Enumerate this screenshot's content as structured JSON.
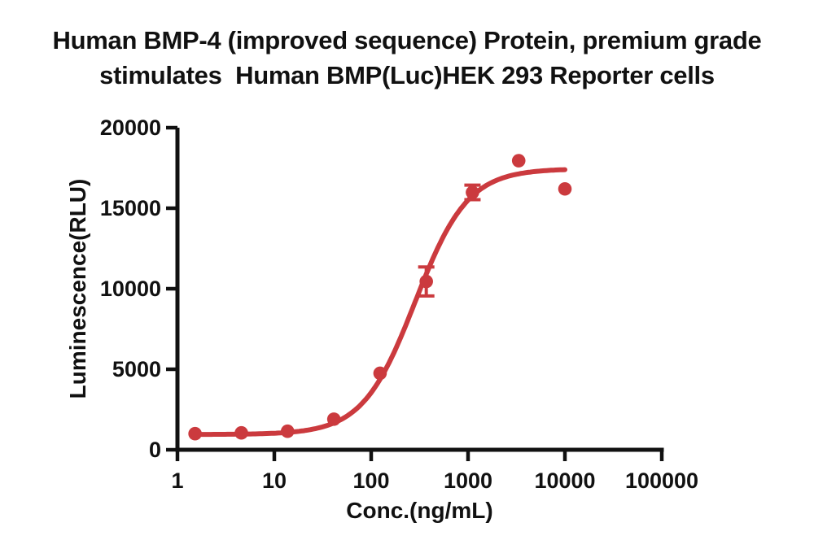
{
  "title": {
    "line1": "Human BMP-4 (improved sequence) Protein, premium grade",
    "line2": "stimulates  Human BMP(Luc)HEK 293 Reporter cells"
  },
  "chart_data": {
    "type": "scatter",
    "subtype": "dose-response-4PL-fit",
    "title": "Human BMP-4 (improved sequence) Protein, premium grade stimulates  Human BMP(Luc)HEK 293 Reporter cells",
    "xlabel": "Conc.(ng/mL)",
    "ylabel": "Luminescence(RLU)",
    "x_scale": "log10",
    "xlim": [
      1,
      100000
    ],
    "ylim": [
      0,
      20000
    ],
    "x_ticks": [
      1,
      10,
      100,
      1000,
      10000,
      100000
    ],
    "y_ticks": [
      0,
      5000,
      10000,
      15000,
      20000
    ],
    "grid": false,
    "legend_position": "none",
    "points": [
      {
        "conc": 1.52,
        "rlu": 1000,
        "err": 0
      },
      {
        "conc": 4.57,
        "rlu": 1050,
        "err": 0
      },
      {
        "conc": 13.7,
        "rlu": 1150,
        "err": 0
      },
      {
        "conc": 41.2,
        "rlu": 1900,
        "err": 0
      },
      {
        "conc": 123.5,
        "rlu": 4750,
        "err": 0
      },
      {
        "conc": 370.4,
        "rlu": 10450,
        "err": 900
      },
      {
        "conc": 1111,
        "rlu": 15980,
        "err": 450
      },
      {
        "conc": 3333,
        "rlu": 17950,
        "err": 0
      },
      {
        "conc": 10000,
        "rlu": 16200,
        "err": 0
      }
    ],
    "fit_curve": {
      "model": "4PL",
      "bottom": 950,
      "top": 17450,
      "ec50": 285,
      "hill": 1.6,
      "x_start": 1.52,
      "x_end": 10000
    },
    "marker_color": "#CB3A3E",
    "line_color": "#CB3A3E",
    "axis_color": "#111111"
  }
}
